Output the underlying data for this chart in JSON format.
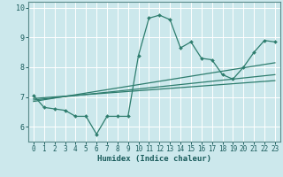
{
  "xlabel": "Humidex (Indice chaleur)",
  "bg_color": "#cce8ec",
  "line_color": "#2e7d6e",
  "grid_color": "#ffffff",
  "xlim": [
    -0.5,
    23.5
  ],
  "ylim": [
    5.5,
    10.2
  ],
  "yticks": [
    6,
    7,
    8,
    9,
    10
  ],
  "xticks": [
    0,
    1,
    2,
    3,
    4,
    5,
    6,
    7,
    8,
    9,
    10,
    11,
    12,
    13,
    14,
    15,
    16,
    17,
    18,
    19,
    20,
    21,
    22,
    23
  ],
  "main_x": [
    0,
    1,
    2,
    3,
    4,
    5,
    6,
    7,
    8,
    9,
    10,
    11,
    12,
    13,
    14,
    15,
    16,
    17,
    18,
    19,
    20,
    21,
    22,
    23
  ],
  "main_y": [
    7.05,
    6.65,
    6.6,
    6.55,
    6.35,
    6.35,
    5.75,
    6.35,
    6.35,
    6.35,
    8.4,
    9.65,
    9.75,
    9.6,
    8.65,
    8.85,
    8.3,
    8.25,
    7.75,
    7.6,
    8.0,
    8.5,
    8.9,
    8.85
  ],
  "line2_x": [
    0,
    23
  ],
  "line2_y": [
    6.95,
    7.55
  ],
  "line3_x": [
    0,
    23
  ],
  "line3_y": [
    6.9,
    7.75
  ],
  "line4_x": [
    0,
    23
  ],
  "line4_y": [
    6.85,
    8.15
  ]
}
